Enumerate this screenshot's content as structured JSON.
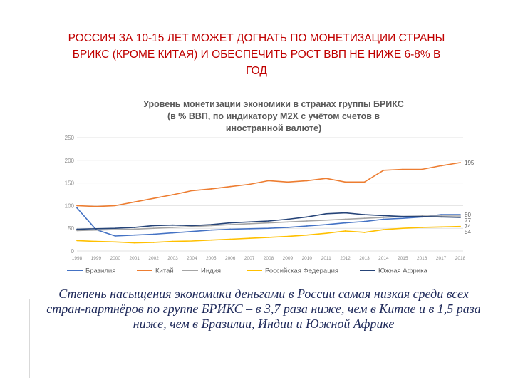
{
  "slide": {
    "title_lines": [
      "РОССИЯ  ЗА 10-15 ЛЕТ МОЖЕТ ДОГНАТЬ  ПО МОНЕТИЗАЦИИ СТРАНЫ",
      "БРИКС  (КРОМЕ КИТАЯ) И ОБЕСПЕЧИТЬ РОСТ ВВП НЕ НИЖЕ 6-8% В",
      "ГОД"
    ],
    "caption": "Степень насыщения экономики деньгами в России самая низкая среди всех стран-партнёров по группе БРИКС – в 3,7 раза ниже, чем в Китае и в 1,5 раза ниже, чем в Бразилии, Индии и Южной Африке",
    "title_color": "#c00000",
    "caption_color": "#1f2a5a"
  },
  "chart_data": {
    "type": "line",
    "title_lines": [
      "Уровень монетизации экономики в странах группы БРИКС",
      "(в % ВВП, по индикатору M2X с учётом счетов в",
      "иностранной валюте)"
    ],
    "x": [
      "1998",
      "1999",
      "2000",
      "2001",
      "2002",
      "2003",
      "2004",
      "2005",
      "2006",
      "2007",
      "2008",
      "2009",
      "2010",
      "2011",
      "2012",
      "2013",
      "2014",
      "2015",
      "2016",
      "2017",
      "2018"
    ],
    "ylim": [
      0,
      250
    ],
    "yticks": [
      0,
      50,
      100,
      150,
      200,
      250
    ],
    "grid": true,
    "legend_position": "bottom",
    "series": [
      {
        "name": "Бразилия",
        "color": "#4472c4",
        "values": [
          95,
          47,
          33,
          35,
          37,
          40,
          43,
          46,
          48,
          49,
          50,
          52,
          55,
          58,
          62,
          65,
          70,
          72,
          75,
          80,
          80
        ],
        "end_label": "80"
      },
      {
        "name": "Китай",
        "color": "#ed7d31",
        "values": [
          100,
          98,
          100,
          108,
          116,
          124,
          133,
          137,
          142,
          147,
          155,
          152,
          155,
          160,
          152,
          152,
          178,
          180,
          180,
          188,
          195
        ],
        "end_label": "195"
      },
      {
        "name": "Индия",
        "color": "#a5a5a5",
        "values": [
          45,
          46,
          47,
          48,
          50,
          52,
          54,
          56,
          58,
          60,
          62,
          64,
          66,
          68,
          70,
          72,
          74,
          76,
          77,
          77,
          77
        ],
        "end_label": "77"
      },
      {
        "name": "Российская Федерация",
        "color": "#ffc000",
        "values": [
          23,
          21,
          20,
          18,
          19,
          21,
          22,
          24,
          26,
          28,
          30,
          32,
          35,
          39,
          44,
          41,
          47,
          50,
          52,
          53,
          54
        ],
        "end_label": "54"
      },
      {
        "name": "Южная Африка",
        "color": "#264478",
        "values": [
          48,
          49,
          50,
          52,
          56,
          57,
          56,
          58,
          62,
          64,
          66,
          70,
          75,
          82,
          84,
          80,
          78,
          76,
          76,
          75,
          74
        ],
        "end_label": "74"
      }
    ]
  }
}
